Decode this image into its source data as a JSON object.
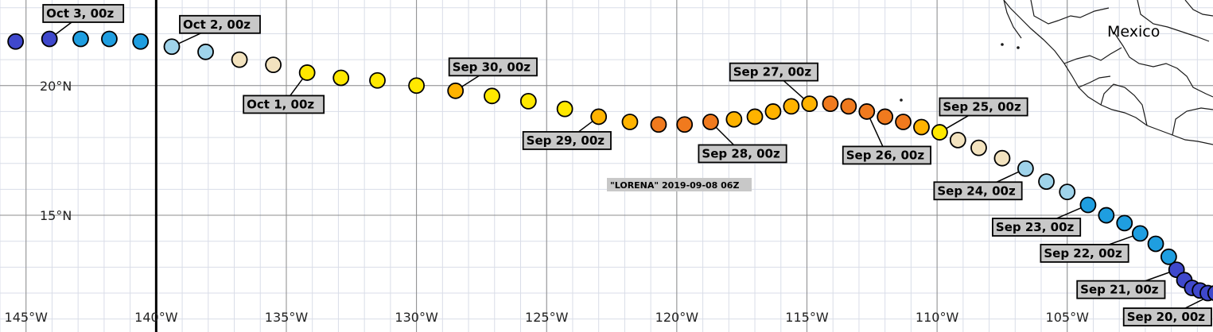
{
  "map": {
    "storm_caption": "\"LORENA\" 2019-09-08 06Z",
    "country_label": "Mexico",
    "extent": {
      "lon_min": -146,
      "lon_max": -99.4,
      "lat_min": 10.5,
      "lat_max": 23.3
    },
    "dateline_lon": -140,
    "lon_ticks": [
      {
        "lon": -145,
        "label": "145°W"
      },
      {
        "lon": -140,
        "label": "140°W"
      },
      {
        "lon": -135,
        "label": "135°W"
      },
      {
        "lon": -130,
        "label": "130°W"
      },
      {
        "lon": -125,
        "label": "125°W"
      },
      {
        "lon": -120,
        "label": "120°W"
      },
      {
        "lon": -115,
        "label": "115°W"
      },
      {
        "lon": -110,
        "label": "110°W"
      },
      {
        "lon": -105,
        "label": "105°W"
      }
    ],
    "lat_ticks": [
      {
        "lat": 20,
        "label": "20°N"
      },
      {
        "lat": 15,
        "label": "15°N"
      }
    ],
    "colors": {
      "td": "#3f48cc",
      "ts": "#1f9ee0",
      "ts_weak": "#9fd3ea",
      "ex": "#f3e3bf",
      "cat1": "#ffe800",
      "cat2": "#ffb300",
      "cat3": "#f07a1e",
      "grid": "#8c8c8c",
      "minor_grid": "#d9dde8",
      "label_bg": "#c8c8c8"
    }
  },
  "chart_data": {
    "type": "scatter",
    "track_points": [
      {
        "lon": -145.4,
        "lat": 21.7,
        "cat": "td"
      },
      {
        "lon": -144.1,
        "lat": 21.8,
        "cat": "td"
      },
      {
        "lon": -142.9,
        "lat": 21.8,
        "cat": "ts"
      },
      {
        "lon": -141.8,
        "lat": 21.8,
        "cat": "ts"
      },
      {
        "lon": -140.6,
        "lat": 21.7,
        "cat": "ts"
      },
      {
        "lon": -139.4,
        "lat": 21.5,
        "cat": "ts_weak"
      },
      {
        "lon": -138.1,
        "lat": 21.3,
        "cat": "ts_weak"
      },
      {
        "lon": -136.8,
        "lat": 21.0,
        "cat": "ex"
      },
      {
        "lon": -135.5,
        "lat": 20.8,
        "cat": "ex"
      },
      {
        "lon": -134.2,
        "lat": 20.5,
        "cat": "cat1"
      },
      {
        "lon": -132.9,
        "lat": 20.3,
        "cat": "cat1"
      },
      {
        "lon": -131.5,
        "lat": 20.2,
        "cat": "cat1"
      },
      {
        "lon": -130.0,
        "lat": 20.0,
        "cat": "cat1"
      },
      {
        "lon": -128.5,
        "lat": 19.8,
        "cat": "cat2"
      },
      {
        "lon": -127.1,
        "lat": 19.6,
        "cat": "cat1"
      },
      {
        "lon": -125.7,
        "lat": 19.4,
        "cat": "cat1"
      },
      {
        "lon": -124.3,
        "lat": 19.1,
        "cat": "cat1"
      },
      {
        "lon": -123.0,
        "lat": 18.8,
        "cat": "cat2"
      },
      {
        "lon": -121.8,
        "lat": 18.6,
        "cat": "cat2"
      },
      {
        "lon": -120.7,
        "lat": 18.5,
        "cat": "cat3"
      },
      {
        "lon": -119.7,
        "lat": 18.5,
        "cat": "cat3"
      },
      {
        "lon": -118.7,
        "lat": 18.6,
        "cat": "cat3"
      },
      {
        "lon": -117.8,
        "lat": 18.7,
        "cat": "cat2"
      },
      {
        "lon": -117.0,
        "lat": 18.8,
        "cat": "cat2"
      },
      {
        "lon": -116.3,
        "lat": 19.0,
        "cat": "cat2"
      },
      {
        "lon": -115.6,
        "lat": 19.2,
        "cat": "cat2"
      },
      {
        "lon": -114.9,
        "lat": 19.3,
        "cat": "cat2"
      },
      {
        "lon": -114.1,
        "lat": 19.3,
        "cat": "cat3"
      },
      {
        "lon": -113.4,
        "lat": 19.2,
        "cat": "cat3"
      },
      {
        "lon": -112.7,
        "lat": 19.0,
        "cat": "cat3"
      },
      {
        "lon": -112.0,
        "lat": 18.8,
        "cat": "cat3"
      },
      {
        "lon": -111.3,
        "lat": 18.6,
        "cat": "cat3"
      },
      {
        "lon": -110.6,
        "lat": 18.4,
        "cat": "cat2"
      },
      {
        "lon": -109.9,
        "lat": 18.2,
        "cat": "cat1"
      },
      {
        "lon": -109.2,
        "lat": 17.9,
        "cat": "ex"
      },
      {
        "lon": -108.4,
        "lat": 17.6,
        "cat": "ex"
      },
      {
        "lon": -107.5,
        "lat": 17.2,
        "cat": "ex"
      },
      {
        "lon": -106.6,
        "lat": 16.8,
        "cat": "ts_weak"
      },
      {
        "lon": -105.8,
        "lat": 16.3,
        "cat": "ts_weak"
      },
      {
        "lon": -105.0,
        "lat": 15.9,
        "cat": "ts_weak"
      },
      {
        "lon": -104.2,
        "lat": 15.4,
        "cat": "ts"
      },
      {
        "lon": -103.5,
        "lat": 15.0,
        "cat": "ts"
      },
      {
        "lon": -102.8,
        "lat": 14.7,
        "cat": "ts"
      },
      {
        "lon": -102.2,
        "lat": 14.3,
        "cat": "ts"
      },
      {
        "lon": -101.6,
        "lat": 13.9,
        "cat": "ts"
      },
      {
        "lon": -101.1,
        "lat": 13.4,
        "cat": "ts"
      },
      {
        "lon": -100.8,
        "lat": 12.9,
        "cat": "td"
      },
      {
        "lon": -100.5,
        "lat": 12.5,
        "cat": "td"
      },
      {
        "lon": -100.2,
        "lat": 12.2,
        "cat": "td"
      },
      {
        "lon": -99.9,
        "lat": 12.1,
        "cat": "td"
      },
      {
        "lon": -99.6,
        "lat": 12.0,
        "cat": "td"
      },
      {
        "lon": -99.3,
        "lat": 12.0,
        "cat": "td"
      }
    ],
    "date_labels": [
      {
        "text": "Oct 3, 00z",
        "lon": -144.1,
        "lat": 21.8
      },
      {
        "text": "Oct 2, 00z",
        "lon": -139.4,
        "lat": 21.5
      },
      {
        "text": "Oct 1, 00z",
        "lon": -134.2,
        "lat": 20.5
      },
      {
        "text": "Sep 30, 00z",
        "lon": -128.5,
        "lat": 19.8
      },
      {
        "text": "Sep 29, 00z",
        "lon": -123.0,
        "lat": 18.8
      },
      {
        "text": "Sep 28, 00z",
        "lon": -118.7,
        "lat": 18.6
      },
      {
        "text": "Sep 27, 00z",
        "lon": -114.9,
        "lat": 19.3
      },
      {
        "text": "Sep 26, 00z",
        "lon": -112.7,
        "lat": 19.0
      },
      {
        "text": "Sep 25, 00z",
        "lon": -109.9,
        "lat": 18.2
      },
      {
        "text": "Sep 24, 00z",
        "lon": -106.6,
        "lat": 16.8
      },
      {
        "text": "Sep 23, 00z",
        "lon": -104.2,
        "lat": 15.4
      },
      {
        "text": "Sep 22, 00z",
        "lon": -102.2,
        "lat": 14.3
      },
      {
        "text": "Sep 21, 00z",
        "lon": -100.8,
        "lat": 12.9
      },
      {
        "text": "Sep 20, 00z",
        "lon": -99.3,
        "lat": 12.0
      }
    ]
  }
}
